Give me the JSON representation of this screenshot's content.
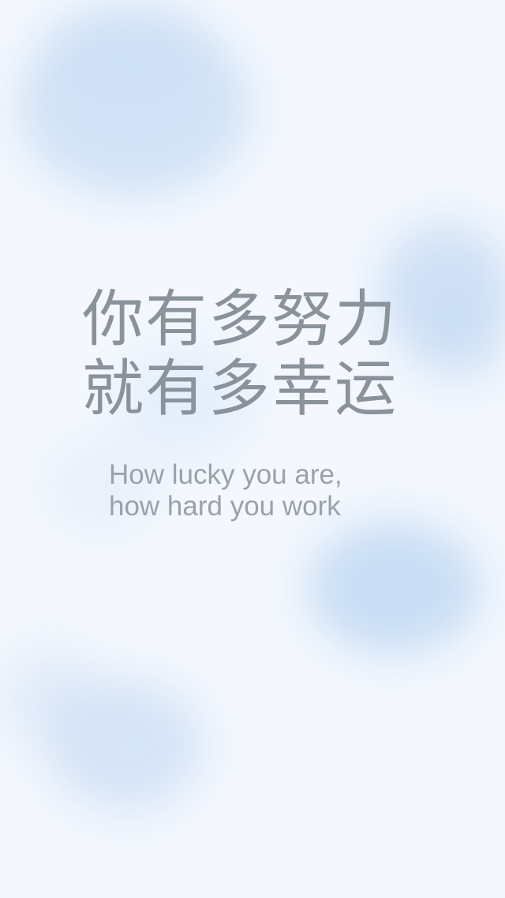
{
  "quote": {
    "chinese_line_1": "你有多努力",
    "chinese_line_2": "就有多幸运",
    "english_line_1": "How lucky you are,",
    "english_line_2": "how hard you work"
  },
  "colors": {
    "background": "#f4f8fe",
    "cloud": "#b7d1f0",
    "chinese_text": "#8a929c",
    "english_text": "#9aa1aa"
  }
}
